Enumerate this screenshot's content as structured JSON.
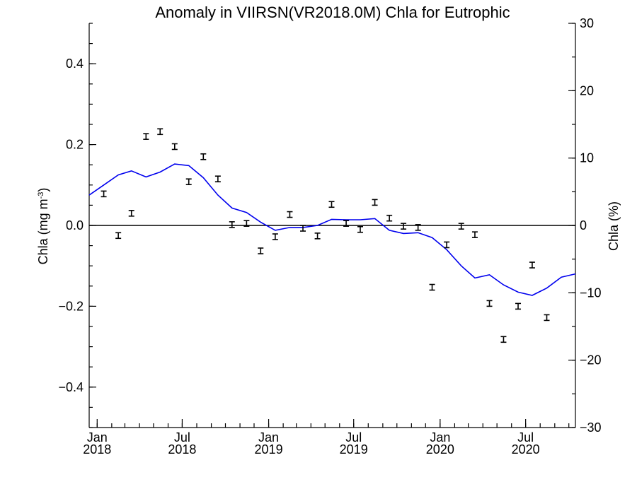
{
  "chart_data": {
    "type": "line",
    "title": "Anomaly in VIIRSN(VR2018.0M) Chla for Eutrophic",
    "ylabel_left": "Chla (mg m",
    "ylabel_left_sup": "-3",
    "ylabel_left_close": ")",
    "ylabel_right": "Chla (%)",
    "ylim_left": [
      -0.5,
      0.5
    ],
    "ylim_right": [
      -30,
      30
    ],
    "yticks_left": [
      {
        "value": 0.4,
        "label": "0.4"
      },
      {
        "value": 0.2,
        "label": "0.2"
      },
      {
        "value": 0.0,
        "label": "0.0"
      },
      {
        "value": -0.2,
        "label": "−0.2"
      },
      {
        "value": -0.4,
        "label": "−0.4"
      }
    ],
    "yticks_right": [
      {
        "value": 30,
        "label": "30"
      },
      {
        "value": 20,
        "label": "20"
      },
      {
        "value": 10,
        "label": "10"
      },
      {
        "value": 0,
        "label": "0"
      },
      {
        "value": -10,
        "label": "−10"
      },
      {
        "value": -20,
        "label": "−20"
      },
      {
        "value": -30,
        "label": "−30"
      }
    ],
    "xlim": [
      "2017-12-15",
      "2020-10-15"
    ],
    "xticks": [
      {
        "date": "2018-01-01",
        "month": "Jan",
        "year": "2018"
      },
      {
        "date": "2018-07-01",
        "month": "Jul",
        "year": "2018"
      },
      {
        "date": "2019-01-01",
        "month": "Jan",
        "year": "2019"
      },
      {
        "date": "2019-07-01",
        "month": "Jul",
        "year": "2019"
      },
      {
        "date": "2020-01-01",
        "month": "Jan",
        "year": "2020"
      },
      {
        "date": "2020-07-01",
        "month": "Jul",
        "year": "2020"
      }
    ],
    "series": [
      {
        "kind": "points_with_errorbars",
        "color": "#000000",
        "points": [
          {
            "x": "2018-01-15",
            "y": 0.078
          },
          {
            "x": "2018-02-15",
            "y": -0.025
          },
          {
            "x": "2018-03-15",
            "y": 0.03
          },
          {
            "x": "2018-04-15",
            "y": 0.22
          },
          {
            "x": "2018-05-15",
            "y": 0.232
          },
          {
            "x": "2018-06-15",
            "y": 0.195
          },
          {
            "x": "2018-07-15",
            "y": 0.108
          },
          {
            "x": "2018-08-15",
            "y": 0.17
          },
          {
            "x": "2018-09-15",
            "y": 0.115
          },
          {
            "x": "2018-10-15",
            "y": 0.002
          },
          {
            "x": "2018-11-15",
            "y": 0.005
          },
          {
            "x": "2018-12-15",
            "y": -0.063
          },
          {
            "x": "2019-01-15",
            "y": -0.028
          },
          {
            "x": "2019-02-15",
            "y": 0.027
          },
          {
            "x": "2019-03-15",
            "y": -0.007
          },
          {
            "x": "2019-04-15",
            "y": -0.026
          },
          {
            "x": "2019-05-15",
            "y": 0.052
          },
          {
            "x": "2019-06-15",
            "y": 0.005
          },
          {
            "x": "2019-07-15",
            "y": -0.01
          },
          {
            "x": "2019-08-15",
            "y": 0.057
          },
          {
            "x": "2019-09-15",
            "y": 0.018
          },
          {
            "x": "2019-10-15",
            "y": -0.002
          },
          {
            "x": "2019-11-15",
            "y": -0.005
          },
          {
            "x": "2019-12-15",
            "y": -0.153
          },
          {
            "x": "2020-01-15",
            "y": -0.048
          },
          {
            "x": "2020-02-15",
            "y": -0.002
          },
          {
            "x": "2020-03-15",
            "y": -0.023
          },
          {
            "x": "2020-04-15",
            "y": -0.193
          },
          {
            "x": "2020-05-15",
            "y": -0.282
          },
          {
            "x": "2020-06-15",
            "y": -0.2
          },
          {
            "x": "2020-07-15",
            "y": -0.098
          },
          {
            "x": "2020-08-15",
            "y": -0.228
          }
        ]
      },
      {
        "kind": "line",
        "color": "#0000ee",
        "points": [
          {
            "x": "2017-12-15",
            "y": 0.075
          },
          {
            "x": "2018-01-15",
            "y": 0.1
          },
          {
            "x": "2018-02-15",
            "y": 0.125
          },
          {
            "x": "2018-03-15",
            "y": 0.135
          },
          {
            "x": "2018-04-15",
            "y": 0.12
          },
          {
            "x": "2018-05-15",
            "y": 0.132
          },
          {
            "x": "2018-06-15",
            "y": 0.152
          },
          {
            "x": "2018-07-15",
            "y": 0.148
          },
          {
            "x": "2018-08-15",
            "y": 0.118
          },
          {
            "x": "2018-09-15",
            "y": 0.075
          },
          {
            "x": "2018-10-15",
            "y": 0.043
          },
          {
            "x": "2018-11-15",
            "y": 0.032
          },
          {
            "x": "2018-12-15",
            "y": 0.008
          },
          {
            "x": "2019-01-15",
            "y": -0.012
          },
          {
            "x": "2019-02-15",
            "y": -0.005
          },
          {
            "x": "2019-03-15",
            "y": -0.005
          },
          {
            "x": "2019-04-15",
            "y": 0.0
          },
          {
            "x": "2019-05-15",
            "y": 0.015
          },
          {
            "x": "2019-06-15",
            "y": 0.014
          },
          {
            "x": "2019-07-15",
            "y": 0.014
          },
          {
            "x": "2019-08-15",
            "y": 0.017
          },
          {
            "x": "2019-09-15",
            "y": -0.012
          },
          {
            "x": "2019-10-15",
            "y": -0.02
          },
          {
            "x": "2019-11-15",
            "y": -0.018
          },
          {
            "x": "2019-12-15",
            "y": -0.03
          },
          {
            "x": "2020-01-15",
            "y": -0.06
          },
          {
            "x": "2020-02-15",
            "y": -0.1
          },
          {
            "x": "2020-03-15",
            "y": -0.13
          },
          {
            "x": "2020-04-15",
            "y": -0.122
          },
          {
            "x": "2020-05-15",
            "y": -0.147
          },
          {
            "x": "2020-06-15",
            "y": -0.165
          },
          {
            "x": "2020-07-15",
            "y": -0.173
          },
          {
            "x": "2020-08-15",
            "y": -0.155
          },
          {
            "x": "2020-09-15",
            "y": -0.128
          },
          {
            "x": "2020-10-15",
            "y": -0.12
          }
        ]
      }
    ],
    "zero_line": true,
    "grid": false,
    "legend": "none"
  }
}
